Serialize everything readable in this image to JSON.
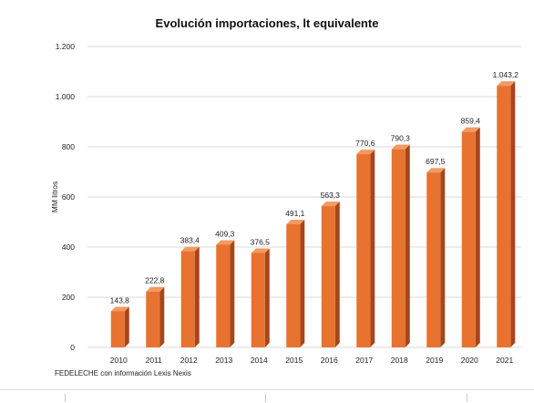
{
  "title": "Evolución importaciones, lt equivalente",
  "source": "FEDELECHE con información Lexis Nexis",
  "chart_data": {
    "type": "bar",
    "title": "Evolución importaciones, lt equivalente",
    "xlabel": "",
    "ylabel": "MM litros",
    "ylim": [
      0,
      1200
    ],
    "yticks": [
      0,
      200,
      400,
      600,
      800,
      1000,
      1200
    ],
    "ytick_labels": [
      "0",
      "200",
      "400",
      "600",
      "800",
      "1.000",
      "1.200"
    ],
    "grid": true,
    "categories": [
      "2010",
      "2011",
      "2012",
      "2013",
      "2014",
      "2015",
      "2016",
      "2017",
      "2018",
      "2019",
      "2020",
      "2021"
    ],
    "values": [
      143.8,
      222.8,
      383.4,
      409.3,
      376.5,
      491.1,
      563.3,
      770.6,
      790.3,
      697.5,
      859.4,
      1043.2
    ],
    "data_labels": [
      "143,8",
      "222,8",
      "383,4",
      "409,3",
      "376,5",
      "491,1",
      "563,3",
      "770,6",
      "790,3",
      "697,5",
      "859,4",
      "1.043,2"
    ],
    "colors": {
      "bar_front": "#E8722F",
      "bar_side": "#A8451A",
      "bar_top": "#F29A62",
      "grid": "#d9d9d9"
    }
  }
}
